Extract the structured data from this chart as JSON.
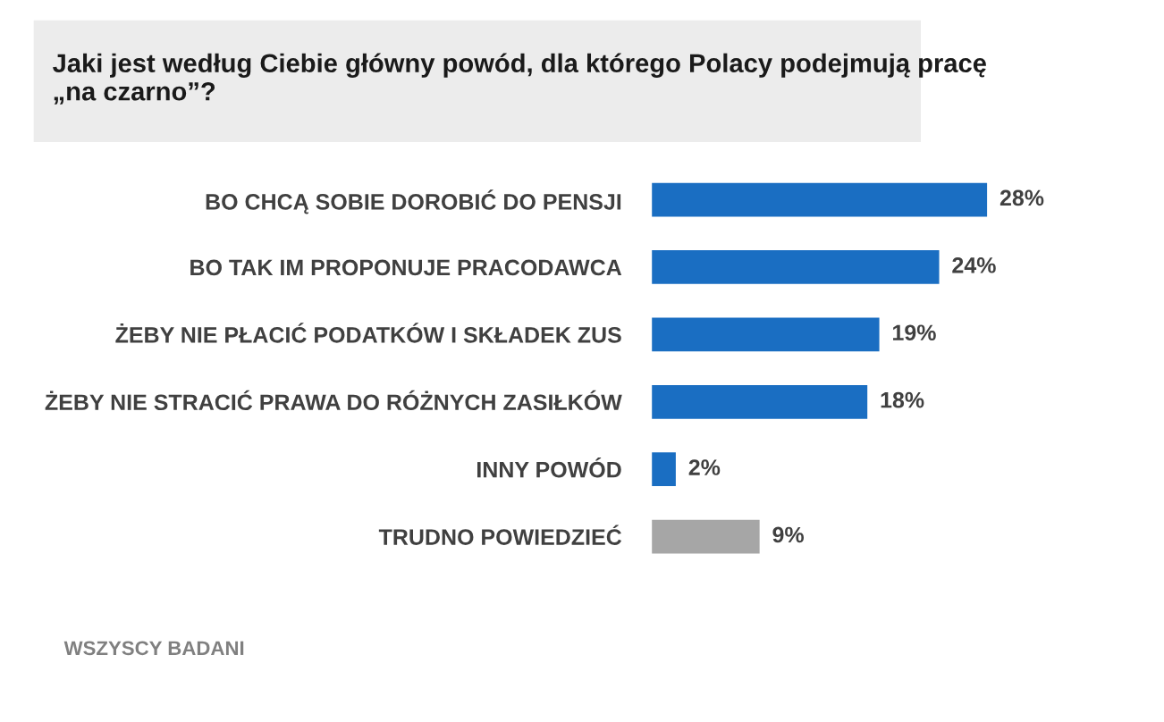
{
  "chart_data": {
    "type": "bar",
    "orientation": "horizontal",
    "title": "Jaki jest według Ciebie główny powód, dla którego Polacy podejmują pracę\n„na czarno”?",
    "categories": [
      "BO CHCĄ SOBIE DOROBIĆ DO PENSJI",
      "BO TAK IM PROPONUJE PRACODAWCA",
      "ŻEBY NIE PŁACIĆ PODATKÓW I SKŁADEK ZUS",
      "ŻEBY NIE STRACIĆ PRAWA DO RÓŻNYCH ZASIŁKÓW",
      "INNY POWÓD",
      "TRUDNO POWIEDZIEĆ"
    ],
    "values": [
      28,
      24,
      19,
      18,
      2,
      9
    ],
    "colors": [
      "#1a6ec2",
      "#1a6ec2",
      "#1a6ec2",
      "#1a6ec2",
      "#1a6ec2",
      "#a6a6a6"
    ],
    "value_labels": [
      "28%",
      "24%",
      "19%",
      "18%",
      "2%",
      "9%"
    ],
    "annotations": [
      "WSZYSCY BADANI"
    ],
    "grid": false,
    "legend": false
  }
}
